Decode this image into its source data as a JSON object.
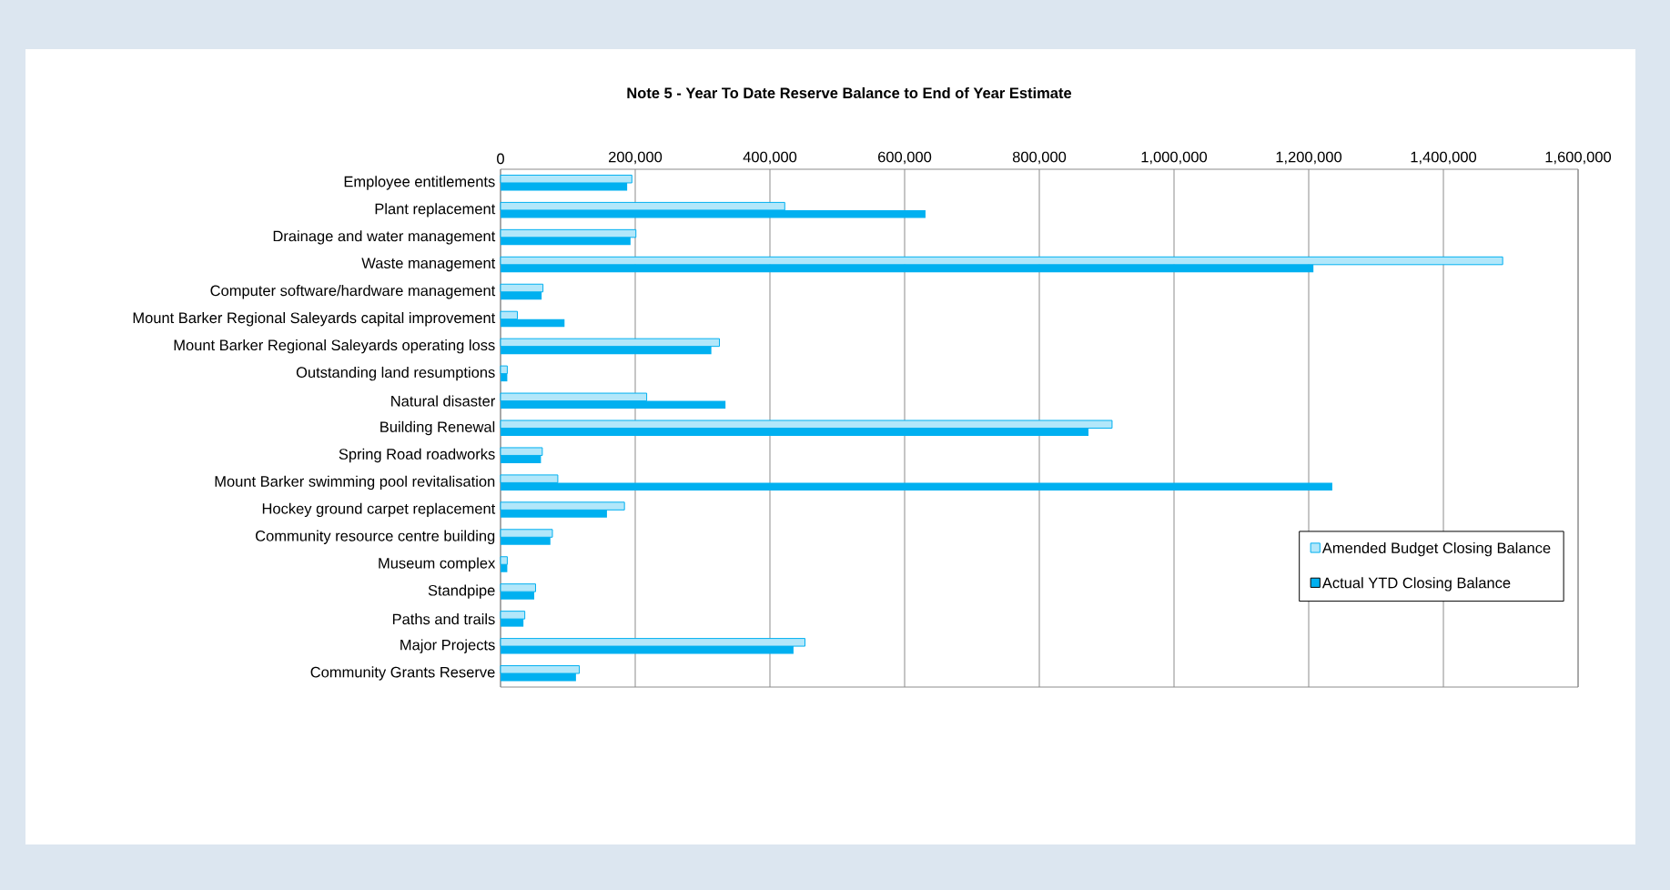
{
  "chart_data": {
    "type": "bar",
    "orientation": "horizontal",
    "title": "Note 5 - Year To Date Reserve Balance to End of Year Estimate",
    "categories": [
      "Employee entitlements",
      "Plant replacement",
      "Drainage and water management",
      "Waste management",
      "Computer software/hardware management",
      "Mount Barker Regional Saleyards capital improvement",
      "Mount Barker Regional Saleyards operating loss",
      "Outstanding land resumptions",
      "Natural disaster",
      "Building Renewal",
      "Spring Road roadworks",
      "Mount Barker swimming pool revitalisation",
      "Hockey ground carpet replacement",
      "Community resource centre building",
      "Museum complex",
      "Standpipe",
      "Paths and trails",
      "Major Projects",
      "Community Grants Reserve"
    ],
    "series": [
      {
        "name": "Amended Budget Closing Balance",
        "color": "#00b0f0",
        "values": [
          195000,
          422000,
          201000,
          1488000,
          63000,
          25000,
          325000,
          10000,
          217000,
          908000,
          62000,
          85000,
          184000,
          77000,
          10000,
          52000,
          36000,
          452000,
          117000
        ]
      },
      {
        "name": "Actual YTD Closing Balance",
        "color": "#00b0f0",
        "values": [
          188000,
          631000,
          193000,
          1207000,
          61000,
          95000,
          313000,
          10000,
          334000,
          873000,
          60000,
          1235000,
          158000,
          74000,
          10000,
          50000,
          34000,
          435000,
          112000
        ]
      }
    ],
    "xlim": [
      0,
      1600000
    ],
    "xticks": [
      0,
      {
        "value": 200000,
        "label": "200,000"
      },
      {
        "value": 400000,
        "label": "400,000"
      },
      {
        "value": 600000,
        "label": "600,000"
      },
      {
        "value": 800000,
        "label": "800,000"
      },
      {
        "value": 1000000,
        "label": "1,000,000"
      },
      {
        "value": 1200000,
        "label": "1,200,000"
      },
      {
        "value": 1400000,
        "label": "1,400,000"
      },
      {
        "value": 1600000,
        "label": "1,600,000"
      }
    ],
    "grid": "x",
    "legend": "bottom right"
  }
}
